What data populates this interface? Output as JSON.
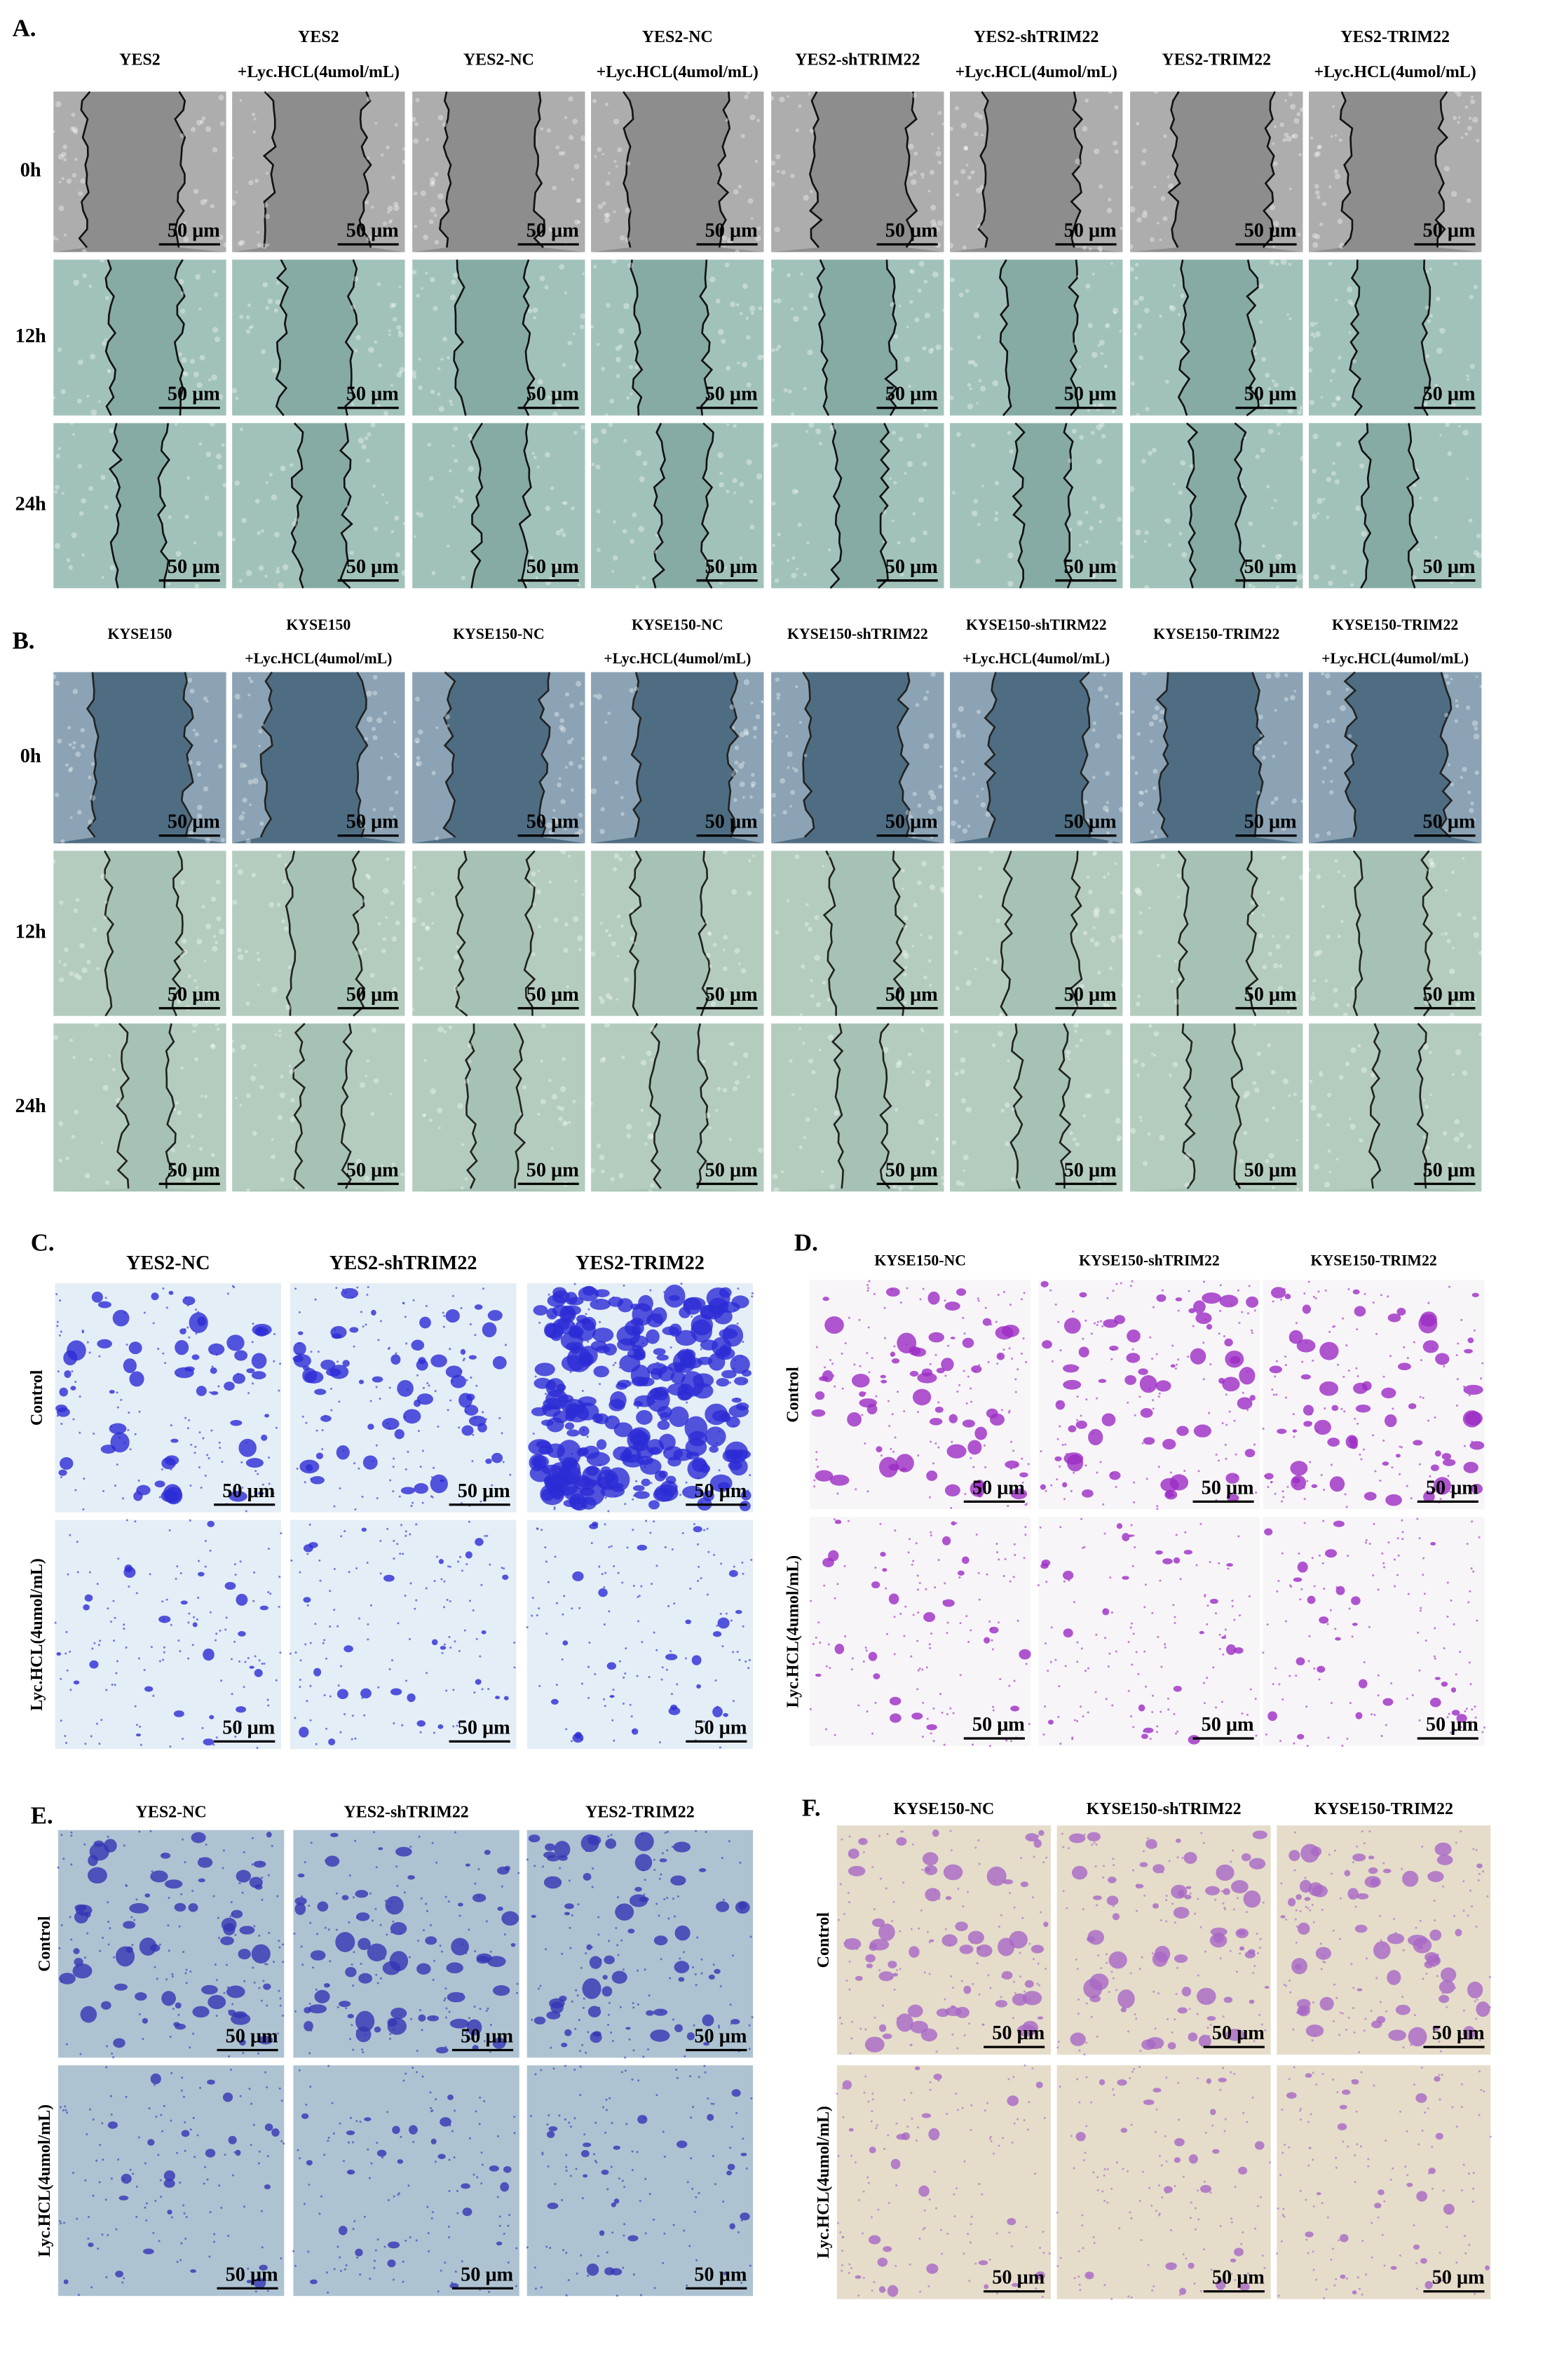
{
  "panels": [
    {
      "label": "A.",
      "columns": [
        [
          "YES2"
        ],
        [
          "YES2",
          "+Lyc.HCL(4umol/mL)"
        ],
        [
          "YES2-NC"
        ],
        [
          "YES2-NC",
          "+Lyc.HCL(4umol/mL)"
        ],
        [
          "YES2-shTRIM22"
        ],
        [
          "YES2-shTRIM22",
          "+Lyc.HCL(4umol/mL)"
        ],
        [
          "YES2-TRIM22"
        ],
        [
          "YES2-TRIM22",
          "+Lyc.HCL(4umol/mL)"
        ]
      ],
      "rows": [
        "0h",
        "12h",
        "24h"
      ],
      "scale_bar": "50 μm"
    },
    {
      "label": "B.",
      "columns": [
        [
          "KYSE150"
        ],
        [
          "KYSE150",
          "+Lyc.HCL(4umol/mL)"
        ],
        [
          "KYSE150-NC"
        ],
        [
          "KYSE150-NC",
          "+Lyc.HCL(4umol/mL)"
        ],
        [
          "KYSE150-shTRIM22"
        ],
        [
          "KYSE150-shTIRM22",
          "+Lyc.HCL(4umol/mL)"
        ],
        [
          "KYSE150-TRIM22"
        ],
        [
          "KYSE150-TRIM22",
          "+Lyc.HCL(4umol/mL)"
        ]
      ],
      "rows": [
        "0h",
        "12h",
        "24h"
      ],
      "scale_bar": "50 μm"
    },
    {
      "label": "C.",
      "columns": [
        [
          "YES2-NC"
        ],
        [
          "YES2-shTRIM22"
        ],
        [
          "YES2-TRIM22"
        ]
      ],
      "rows": [
        "Control",
        "Lyc.HCL(4umol/mL)"
      ],
      "scale_bar": "50 μm"
    },
    {
      "label": "D.",
      "columns": [
        [
          "KYSE150-NC"
        ],
        [
          "KYSE150-shTRIM22"
        ],
        [
          "KYSE150-TRIM22"
        ]
      ],
      "rows": [
        "Control",
        "Lyc.HCL(4umol/mL)"
      ],
      "scale_bar": "50 μm"
    },
    {
      "label": "E.",
      "columns": [
        [
          "YES2-NC"
        ],
        [
          "YES2-shTRIM22"
        ],
        [
          "YES2-TRIM22"
        ]
      ],
      "rows": [
        "Control",
        "Lyc.HCL(4umol/mL)"
      ],
      "scale_bar": "50 μm"
    },
    {
      "label": "F.",
      "columns": [
        [
          "KYSE150-NC"
        ],
        [
          "KYSE150-shTRIM22"
        ],
        [
          "KYSE150-TRIM22"
        ]
      ],
      "rows": [
        "Control",
        "Lyc.HCL(4umol/mL)"
      ],
      "scale_bar": "50 μm"
    }
  ]
}
